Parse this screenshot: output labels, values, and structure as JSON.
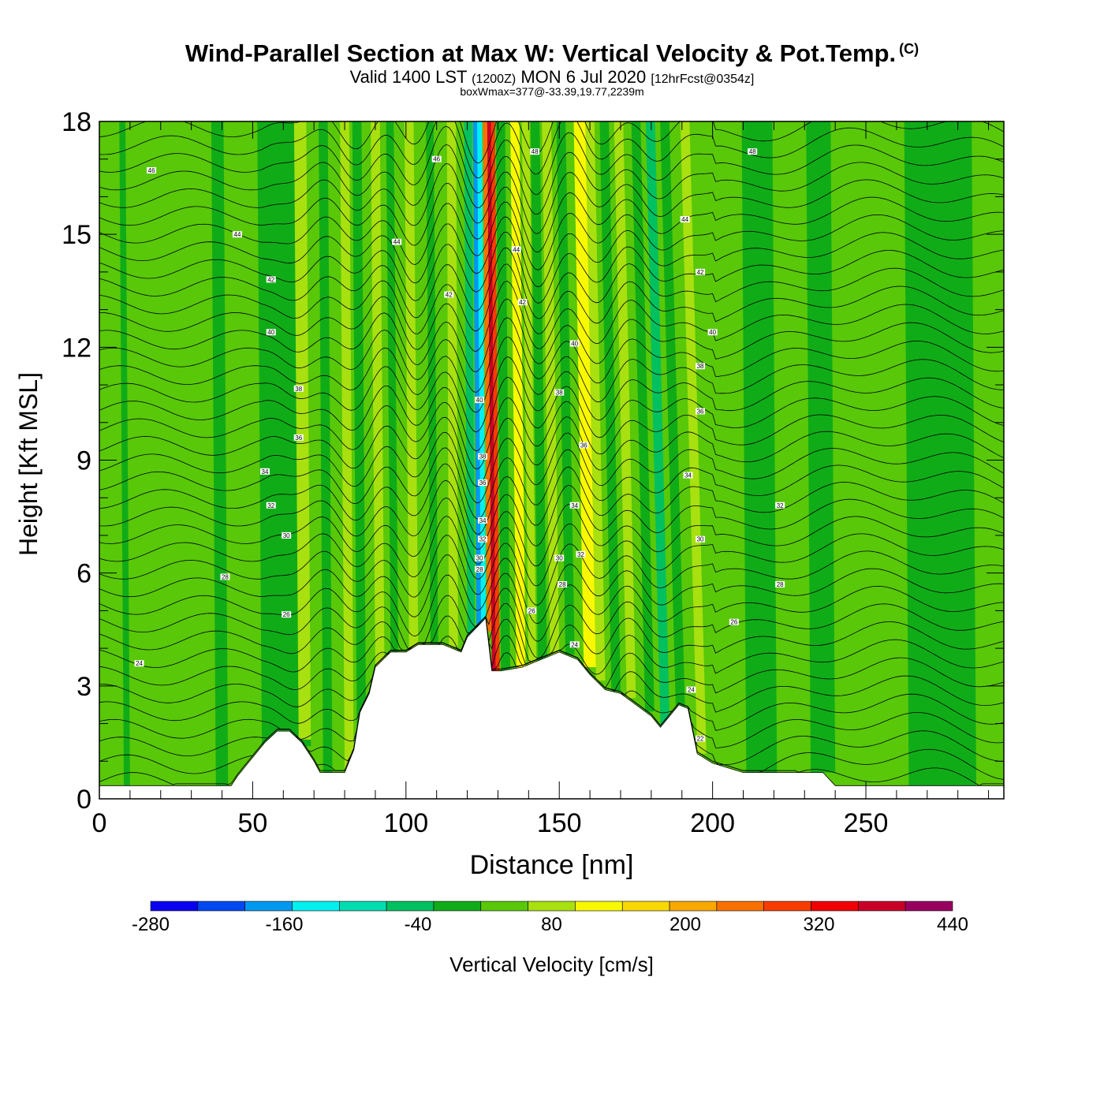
{
  "header": {
    "title": "Wind-Parallel Section at Max W: Vertical Velocity & Pot.Temp.",
    "copyright": "(C)",
    "valid_prefix": "Valid 1400 LST",
    "valid_utc": "(1200Z)",
    "valid_date": "MON 6 Jul 2020",
    "forecast": "[12hrFcst@0354z]",
    "box_wmax": "boxWmax=377@-33.39,19.77,2239m"
  },
  "chart_data": {
    "type": "heatmap",
    "xlabel": "Distance [nm]",
    "ylabel": "Height [Kft MSL]",
    "xlim": [
      0,
      295
    ],
    "ylim": [
      0,
      18
    ],
    "x_ticks": [
      "0",
      "50",
      "100",
      "150",
      "200",
      "250"
    ],
    "y_ticks": [
      "0",
      "3",
      "6",
      "9",
      "12",
      "15",
      "18"
    ],
    "colorbar": {
      "label": "Vertical Velocity [cm/s]",
      "tick_labels": [
        "-280",
        "-160",
        "-40",
        "80",
        "200",
        "320",
        "440"
      ],
      "levels": [
        -280,
        -240,
        -200,
        -160,
        -120,
        -80,
        -40,
        0,
        40,
        80,
        120,
        160,
        200,
        240,
        280,
        320,
        360,
        400,
        440
      ],
      "colors": [
        "#0a00f0",
        "#0048f0",
        "#0098f0",
        "#00f0f0",
        "#00dcb0",
        "#00c060",
        "#10ac18",
        "#58c808",
        "#a8e010",
        "#f8f800",
        "#f8d800",
        "#f8a800",
        "#f87000",
        "#f83c00",
        "#f00000",
        "#c80028",
        "#980060"
      ]
    },
    "max_updraft_cms": 377,
    "max_updraft_location": "-33.39,19.77",
    "max_updraft_height_m": 2239,
    "terrain_kft": {
      "x": [
        0,
        43,
        45,
        48,
        51,
        54,
        58,
        62,
        66,
        70,
        72,
        75,
        80,
        83,
        85,
        88,
        90,
        95,
        100,
        104,
        108,
        112,
        118,
        120,
        126,
        128,
        131,
        138,
        150,
        156,
        160,
        165,
        170,
        175,
        180,
        183,
        186,
        189,
        192,
        195,
        200,
        210,
        236,
        240,
        260,
        295
      ],
      "z": [
        0.35,
        0.35,
        0.6,
        0.9,
        1.2,
        1.5,
        1.8,
        1.8,
        1.5,
        1.0,
        0.7,
        0.7,
        0.7,
        1.3,
        2.3,
        2.8,
        3.5,
        3.9,
        3.9,
        4.1,
        4.1,
        4.1,
        3.9,
        4.3,
        4.8,
        3.4,
        3.4,
        3.5,
        3.9,
        3.7,
        3.3,
        2.9,
        2.8,
        2.5,
        2.2,
        1.9,
        2.2,
        2.5,
        2.4,
        1.2,
        0.95,
        0.7,
        0.7,
        0.35,
        0.35,
        0.35
      ]
    },
    "vertical_velocity_bands_cms": [
      {
        "x": 53,
        "w": 16,
        "w_cms": -30
      },
      {
        "x": 65,
        "w": 4,
        "w_cms": 70
      },
      {
        "x": 73,
        "w": 3,
        "w_cms": -30
      },
      {
        "x": 80,
        "w": 3,
        "w_cms": 50
      },
      {
        "x": 84,
        "w": 3,
        "w_cms": -30
      },
      {
        "x": 90,
        "w": 3,
        "w_cms": 50
      },
      {
        "x": 95,
        "w": 2.5,
        "w_cms": -30
      },
      {
        "x": 101,
        "w": 3,
        "w_cms": 50
      },
      {
        "x": 108,
        "w": 2.5,
        "w_cms": -30
      },
      {
        "x": 114,
        "w": 3,
        "w_cms": 40
      },
      {
        "x": 120,
        "w": 2.5,
        "w_cms": -60
      },
      {
        "x": 123,
        "w": 1.5,
        "w_cms": -190
      },
      {
        "x": 124.5,
        "w": 1.6,
        "w_cms": -150
      },
      {
        "x": 126.5,
        "w": 1.4,
        "w_cms": 200
      },
      {
        "x": 128,
        "w": 1.3,
        "w_cms": 350
      },
      {
        "x": 129.3,
        "w": 1.3,
        "w_cms": 250
      },
      {
        "x": 131,
        "w": 3,
        "w_cms": -40
      },
      {
        "x": 136,
        "w": 3,
        "w_cms": 110
      },
      {
        "x": 140,
        "w": 2.5,
        "w_cms": 60
      },
      {
        "x": 143,
        "w": 3,
        "w_cms": -30
      },
      {
        "x": 147,
        "w": 3,
        "w_cms": 50
      },
      {
        "x": 152,
        "w": 3,
        "w_cms": -40
      },
      {
        "x": 158,
        "w": 4,
        "w_cms": 90
      },
      {
        "x": 162,
        "w": 3,
        "w_cms": 40
      },
      {
        "x": 167,
        "w": 3,
        "w_cms": -40
      },
      {
        "x": 172,
        "w": 3,
        "w_cms": 50
      },
      {
        "x": 178,
        "w": 3,
        "w_cms": -30
      },
      {
        "x": 183,
        "w": 3,
        "w_cms": -50
      },
      {
        "x": 188,
        "w": 3,
        "w_cms": -30
      },
      {
        "x": 195,
        "w": 3,
        "w_cms": 60
      },
      {
        "x": 211,
        "w": 10,
        "w_cms": -30
      },
      {
        "x": 232,
        "w": 8,
        "w_cms": -30
      },
      {
        "x": 264,
        "w": 22,
        "w_cms": -30
      },
      {
        "x": 38,
        "w": 4,
        "w_cms": -30
      },
      {
        "x": 8,
        "w": 2,
        "w_cms": -30
      }
    ],
    "theta_contour_labels": [
      {
        "x": 17,
        "y": 16.7,
        "text": "46"
      },
      {
        "x": 45,
        "y": 15.0,
        "text": "44"
      },
      {
        "x": 56,
        "y": 13.8,
        "text": "42"
      },
      {
        "x": 56,
        "y": 12.4,
        "text": "40"
      },
      {
        "x": 65,
        "y": 10.9,
        "text": "38"
      },
      {
        "x": 65,
        "y": 9.6,
        "text": "36"
      },
      {
        "x": 54,
        "y": 8.7,
        "text": "34"
      },
      {
        "x": 56,
        "y": 7.8,
        "text": "32"
      },
      {
        "x": 61,
        "y": 7.0,
        "text": "30"
      },
      {
        "x": 41,
        "y": 5.9,
        "text": "28"
      },
      {
        "x": 61,
        "y": 4.9,
        "text": "26"
      },
      {
        "x": 13,
        "y": 3.6,
        "text": "24"
      },
      {
        "x": 110,
        "y": 17.0,
        "text": "46"
      },
      {
        "x": 97,
        "y": 14.8,
        "text": "44"
      },
      {
        "x": 114,
        "y": 13.4,
        "text": "42"
      },
      {
        "x": 142,
        "y": 17.2,
        "text": "48"
      },
      {
        "x": 136,
        "y": 14.6,
        "text": "44"
      },
      {
        "x": 138,
        "y": 13.2,
        "text": "42"
      },
      {
        "x": 155,
        "y": 12.1,
        "text": "40"
      },
      {
        "x": 150,
        "y": 10.8,
        "text": "38"
      },
      {
        "x": 158,
        "y": 9.4,
        "text": "36"
      },
      {
        "x": 155,
        "y": 7.8,
        "text": "34"
      },
      {
        "x": 150,
        "y": 6.4,
        "text": "30"
      },
      {
        "x": 157,
        "y": 6.5,
        "text": "32"
      },
      {
        "x": 151,
        "y": 5.7,
        "text": "28"
      },
      {
        "x": 141,
        "y": 5.0,
        "text": "26"
      },
      {
        "x": 155,
        "y": 4.1,
        "text": "24"
      },
      {
        "x": 213,
        "y": 17.2,
        "text": "48"
      },
      {
        "x": 191,
        "y": 15.4,
        "text": "44"
      },
      {
        "x": 196,
        "y": 14.0,
        "text": "42"
      },
      {
        "x": 200,
        "y": 12.4,
        "text": "40"
      },
      {
        "x": 196,
        "y": 11.5,
        "text": "38"
      },
      {
        "x": 196,
        "y": 10.3,
        "text": "36"
      },
      {
        "x": 192,
        "y": 8.6,
        "text": "34"
      },
      {
        "x": 222,
        "y": 7.8,
        "text": "32"
      },
      {
        "x": 196,
        "y": 6.9,
        "text": "30"
      },
      {
        "x": 222,
        "y": 5.7,
        "text": "28"
      },
      {
        "x": 207,
        "y": 4.7,
        "text": "26"
      },
      {
        "x": 193,
        "y": 2.9,
        "text": "24"
      },
      {
        "x": 196,
        "y": 1.6,
        "text": "22"
      },
      {
        "x": 124,
        "y": 10.6,
        "text": "40"
      },
      {
        "x": 125,
        "y": 9.1,
        "text": "38"
      },
      {
        "x": 125,
        "y": 8.4,
        "text": "36"
      },
      {
        "x": 125,
        "y": 7.4,
        "text": "34"
      },
      {
        "x": 125,
        "y": 6.9,
        "text": "32"
      },
      {
        "x": 124,
        "y": 6.4,
        "text": "30"
      },
      {
        "x": 124,
        "y": 6.1,
        "text": "28"
      }
    ]
  }
}
